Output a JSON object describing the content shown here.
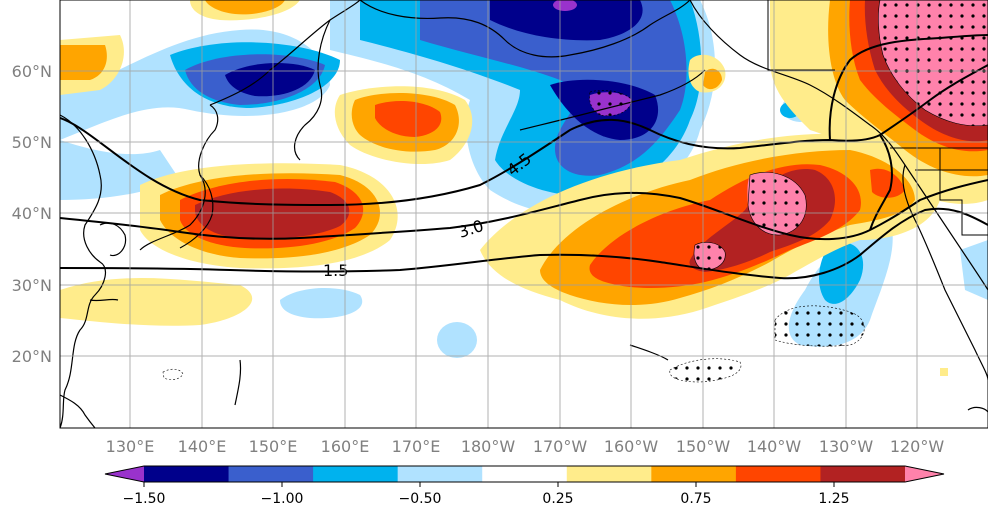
{
  "map": {
    "lat_labels": [
      "60°N",
      "50°N",
      "40°N",
      "30°N",
      "20°N"
    ],
    "lon_labels": [
      "130°E",
      "140°E",
      "150°E",
      "160°E",
      "170°E",
      "180°W",
      "170°W",
      "160°W",
      "150°W",
      "140°W",
      "130°W",
      "120°W"
    ],
    "contour_labels": [
      "4.5",
      "3.0",
      "1.5"
    ]
  },
  "colorbar": {
    "colors": [
      "#9932cc",
      "#00008b",
      "#3a5fcd",
      "#00b2ee",
      "#b0e2ff",
      "#ffffff",
      "#ffec8b",
      "#ffa500",
      "#ff4500",
      "#b22222",
      "#ff82ab"
    ],
    "tick_labels": [
      "−1.50",
      "−1.00",
      "−0.50",
      "0.25",
      "0.75",
      "1.25"
    ]
  },
  "colors": {
    "grid": "#a0a0a0",
    "tick_text": "#808080"
  }
}
